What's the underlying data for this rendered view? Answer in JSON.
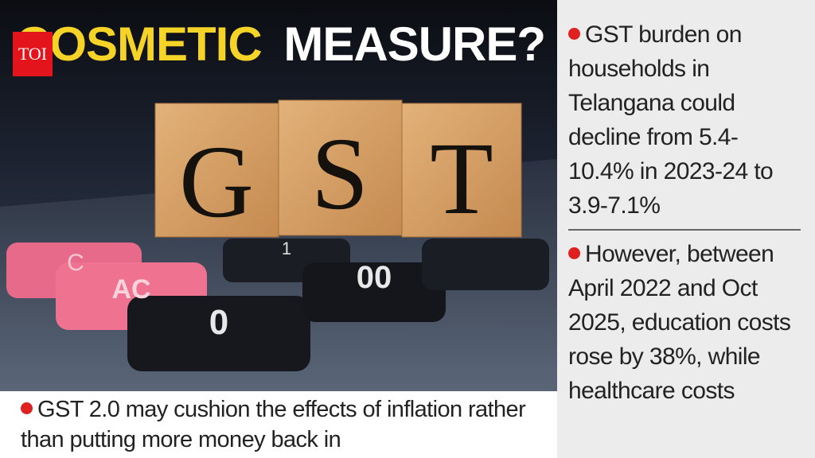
{
  "logo": "TOI",
  "headline": {
    "part1": "COSMETIC",
    "part2": "MEASURE?"
  },
  "blocks": [
    "G",
    "S",
    "T"
  ],
  "keys": [
    "C",
    "AC",
    "0",
    "00",
    "1"
  ],
  "caption": "GST 2.0 may cushion the effects of inflation rather than putting more money back in",
  "sidebar": {
    "points": [
      "GST burden on households in Telangana could decline from 5.4-10.4% in 2023-24 to 3.9-7.1%",
      "However, between April 2022 and Oct 2025, education costs rose by 38%, while healthcare costs"
    ]
  }
}
